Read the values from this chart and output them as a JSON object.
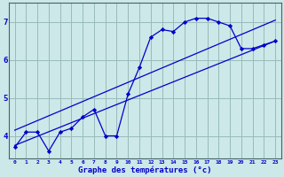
{
  "xlabel": "Graphe des températures (°c)",
  "background_color": "#cce8e8",
  "line_color": "#0000cc",
  "grid_color": "#99bbbb",
  "hours": [
    0,
    1,
    2,
    3,
    4,
    5,
    6,
    7,
    8,
    9,
    10,
    11,
    12,
    13,
    14,
    15,
    16,
    17,
    18,
    19,
    20,
    21,
    22,
    23
  ],
  "temps": [
    3.7,
    4.1,
    4.1,
    3.6,
    4.1,
    4.2,
    4.5,
    4.7,
    4.0,
    4.0,
    5.1,
    5.8,
    6.6,
    6.8,
    6.75,
    7.0,
    7.1,
    7.1,
    7.0,
    6.9,
    6.3,
    6.3,
    6.4,
    6.5
  ],
  "ylim": [
    3.4,
    7.5
  ],
  "xlim": [
    -0.5,
    23.5
  ],
  "yticks": [
    4,
    5,
    6,
    7
  ],
  "xticks": [
    0,
    1,
    2,
    3,
    4,
    5,
    6,
    7,
    8,
    9,
    10,
    11,
    12,
    13,
    14,
    15,
    16,
    17,
    18,
    19,
    20,
    21,
    22,
    23
  ],
  "xtick_labels": [
    "0",
    "1",
    "2",
    "3",
    "4",
    "5",
    "6",
    "7",
    "8",
    "9",
    "10",
    "11",
    "12",
    "13",
    "14",
    "15",
    "16",
    "17",
    "18",
    "19",
    "20",
    "21",
    "22",
    "23"
  ],
  "trend1_x": [
    0,
    23
  ],
  "trend1_y": [
    3.75,
    6.5
  ],
  "trend2_x": [
    0,
    23
  ],
  "trend2_y": [
    4.15,
    7.05
  ]
}
